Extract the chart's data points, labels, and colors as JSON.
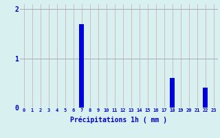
{
  "hours": [
    0,
    1,
    2,
    3,
    4,
    5,
    6,
    7,
    8,
    9,
    10,
    11,
    12,
    13,
    14,
    15,
    16,
    17,
    18,
    19,
    20,
    21,
    22,
    23
  ],
  "values": [
    0,
    0,
    0,
    0,
    0,
    0,
    0,
    1.7,
    0,
    0,
    0,
    0,
    0,
    0,
    0,
    0,
    0,
    0,
    0.6,
    0,
    0,
    0,
    0.4,
    0
  ],
  "bar_color": "#0000dd",
  "background_color": "#d8f0f0",
  "grid_color_v": "#c8a8a8",
  "grid_color_h": "#a8a8b8",
  "xlabel": "Précipitations 1h ( mm )",
  "xlabel_color": "#0000cc",
  "tick_color": "#0000cc",
  "ylim": [
    0,
    2.1
  ],
  "yticks": [
    0,
    1,
    2
  ],
  "xlim": [
    -0.5,
    23.5
  ]
}
